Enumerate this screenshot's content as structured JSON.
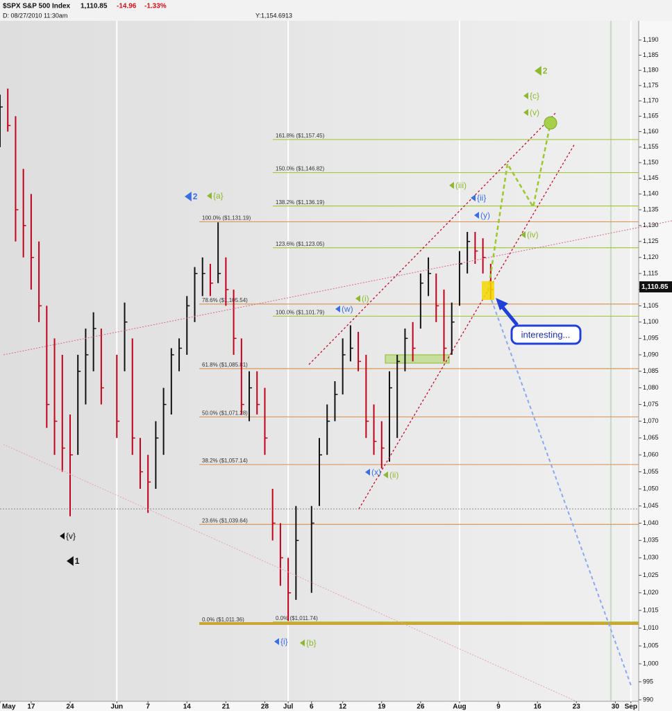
{
  "header": {
    "symbol": "$SPX S&P 500 Index",
    "price": "1,110.85",
    "change": "-14.96",
    "change_pct": "-1.33%",
    "date": "D: 08/27/2010 11:30am",
    "cursor": "Y:1,154.6913"
  },
  "chart_data": {
    "type": "hilo",
    "log": true,
    "up_color": "#111111",
    "down_color": "#c0001a",
    "x": [
      "2010-05-11",
      "2010-05-12",
      "2010-05-13",
      "2010-05-14",
      "2010-05-17",
      "2010-05-18",
      "2010-05-19",
      "2010-05-20",
      "2010-05-21",
      "2010-05-24",
      "2010-05-25",
      "2010-05-26",
      "2010-05-27",
      "2010-05-28",
      "2010-06-01",
      "2010-06-02",
      "2010-06-03",
      "2010-06-04",
      "2010-06-07",
      "2010-06-08",
      "2010-06-09",
      "2010-06-10",
      "2010-06-11",
      "2010-06-14",
      "2010-06-15",
      "2010-06-16",
      "2010-06-17",
      "2010-06-18",
      "2010-06-21",
      "2010-06-22",
      "2010-06-23",
      "2010-06-24",
      "2010-06-25",
      "2010-06-28",
      "2010-06-29",
      "2010-06-30",
      "2010-07-01",
      "2010-07-02",
      "2010-07-06",
      "2010-07-07",
      "2010-07-08",
      "2010-07-09",
      "2010-07-12",
      "2010-07-13",
      "2010-07-14",
      "2010-07-15",
      "2010-07-16",
      "2010-07-19",
      "2010-07-20",
      "2010-07-21",
      "2010-07-22",
      "2010-07-23",
      "2010-07-26",
      "2010-07-27",
      "2010-07-28",
      "2010-07-29",
      "2010-07-30",
      "2010-08-02",
      "2010-08-03",
      "2010-08-04",
      "2010-08-05",
      "2010-08-06"
    ],
    "high": [
      1172,
      1174,
      1165,
      1148,
      1140,
      1125,
      1105,
      1095,
      1090,
      1072,
      1090,
      1098,
      1103,
      1098,
      1090,
      1106,
      1095,
      1065,
      1060,
      1070,
      1080,
      1092,
      1095,
      1108,
      1117,
      1120,
      1118,
      1131,
      1120,
      1110,
      1095,
      1085,
      1085,
      1080,
      1050,
      1040,
      1030,
      1045,
      1045,
      1065,
      1075,
      1082,
      1095,
      1099,
      1097,
      1090,
      1075,
      1070,
      1085,
      1090,
      1098,
      1100,
      1115,
      1120,
      1115,
      1110,
      1106,
      1122,
      1128,
      1128,
      1126,
      1118
    ],
    "low": [
      1155,
      1160,
      1125,
      1120,
      1110,
      1100,
      1068,
      1060,
      1055,
      1042,
      1060,
      1075,
      1085,
      1075,
      1065,
      1085,
      1060,
      1050,
      1043,
      1050,
      1060,
      1072,
      1085,
      1090,
      1100,
      1108,
      1108,
      1112,
      1105,
      1090,
      1072,
      1070,
      1072,
      1060,
      1035,
      1022,
      1012,
      1018,
      1020,
      1045,
      1060,
      1070,
      1078,
      1088,
      1085,
      1065,
      1060,
      1056,
      1058,
      1065,
      1085,
      1088,
      1098,
      1108,
      1100,
      1088,
      1090,
      1105,
      1115,
      1118,
      1115,
      1107
    ],
    "close": [
      1168,
      1162,
      1135,
      1130,
      1120,
      1105,
      1075,
      1070,
      1062,
      1060,
      1085,
      1090,
      1098,
      1080,
      1070,
      1100,
      1065,
      1055,
      1052,
      1065,
      1075,
      1090,
      1092,
      1105,
      1115,
      1115,
      1112,
      1115,
      1110,
      1095,
      1075,
      1080,
      1075,
      1065,
      1040,
      1030,
      1020,
      1035,
      1040,
      1060,
      1070,
      1078,
      1090,
      1092,
      1088,
      1070,
      1064,
      1062,
      1080,
      1088,
      1095,
      1092,
      1112,
      1115,
      1105,
      1092,
      1100,
      1118,
      1125,
      1122,
      1120,
      1110
    ],
    "xlim": [
      "2010-05-11",
      "2010-09-02"
    ],
    "xticks": [
      {
        "value": "2010-05-11",
        "label": "May"
      },
      {
        "value": "2010-05-17",
        "label": "17"
      },
      {
        "value": "2010-05-24",
        "label": "24"
      },
      {
        "value": "2010-06-01",
        "label": "Jun"
      },
      {
        "value": "2010-06-07",
        "label": "7"
      },
      {
        "value": "2010-06-14",
        "label": "14"
      },
      {
        "value": "2010-06-21",
        "label": "21"
      },
      {
        "value": "2010-06-28",
        "label": "28"
      },
      {
        "value": "2010-07-01",
        "label": "Jul"
      },
      {
        "value": "2010-07-06",
        "label": "6"
      },
      {
        "value": "2010-07-12",
        "label": "12"
      },
      {
        "value": "2010-07-19",
        "label": "19"
      },
      {
        "value": "2010-07-26",
        "label": "26"
      },
      {
        "value": "2010-08-02",
        "label": "Aug"
      },
      {
        "value": "2010-08-09",
        "label": "9"
      },
      {
        "value": "2010-08-16",
        "label": "16"
      },
      {
        "value": "2010-08-23",
        "label": "23"
      },
      {
        "value": "2010-08-30",
        "label": "30"
      },
      {
        "value": "2010-09-01",
        "label": "Sep"
      }
    ],
    "ylim": [
      989.6,
      1196.4
    ],
    "yticks": [
      990,
      995,
      {
        "value": 1000,
        "label": "1,000"
      },
      {
        "value": 1005,
        "label": "1,005"
      },
      {
        "value": 1010,
        "label": "1,010"
      },
      {
        "value": 1015,
        "label": "1,015"
      },
      {
        "value": 1020,
        "label": "1,020"
      },
      {
        "value": 1025,
        "label": "1,025"
      },
      {
        "value": 1030,
        "label": "1,030"
      },
      {
        "value": 1035,
        "label": "1,035"
      },
      {
        "value": 1040,
        "label": "1,040"
      },
      {
        "value": 1045,
        "label": "1,045"
      },
      {
        "value": 1050,
        "label": "1,050"
      },
      {
        "value": 1055,
        "label": "1,055"
      },
      {
        "value": 1060,
        "label": "1,060"
      },
      {
        "value": 1065,
        "label": "1,065"
      },
      {
        "value": 1070,
        "label": "1,070"
      },
      {
        "value": 1075,
        "label": "1,075"
      },
      {
        "value": 1080,
        "label": "1,080"
      },
      {
        "value": 1085,
        "label": "1,085"
      },
      {
        "value": 1090,
        "label": "1,090"
      },
      {
        "value": 1095,
        "label": "1,095"
      },
      {
        "value": 1100,
        "label": "1,100"
      },
      {
        "value": 1105,
        "label": "1,105"
      },
      {
        "value": 1110,
        "label": "1,110"
      },
      {
        "value": 1115,
        "label": "1,115"
      },
      {
        "value": 1120,
        "label": "1,120"
      },
      {
        "value": 1125,
        "label": "1,125"
      },
      {
        "value": 1130,
        "label": "1,130"
      },
      {
        "value": 1135,
        "label": "1,135"
      },
      {
        "value": 1140,
        "label": "1,140"
      },
      {
        "value": 1145,
        "label": "1,145"
      },
      {
        "value": 1150,
        "label": "1,150"
      },
      {
        "value": 1155,
        "label": "1,155"
      },
      {
        "value": 1160,
        "label": "1,160"
      },
      {
        "value": 1165,
        "label": "1,165"
      },
      {
        "value": 1170,
        "label": "1,170"
      },
      {
        "value": 1175,
        "label": "1,175"
      },
      {
        "value": 1180,
        "label": "1,180"
      },
      {
        "value": 1185,
        "label": "1,185"
      },
      {
        "value": 1190,
        "label": "1,190"
      }
    ],
    "last": {
      "value": 1110.85,
      "label": "1,110.85"
    },
    "retracement": {
      "color": "#d9975e",
      "levels": [
        {
          "value": 1131.19,
          "label": "100.0%  ($1,131.19)"
        },
        {
          "value": 1105.54,
          "label": "78.6%  ($1,105.54)"
        },
        {
          "value": 1085.81,
          "label": "61.8%  ($1,085.81)"
        },
        {
          "value": 1071.28,
          "label": "50.0%  ($1,071.28)"
        },
        {
          "value": 1057.14,
          "label": "38.2%  ($1,057.14)"
        },
        {
          "value": 1039.64,
          "label": "23.6%  ($1,039.64)"
        },
        {
          "value": 1011.36,
          "label": "0.0%  ($1,011.36)"
        }
      ]
    },
    "extension": {
      "color": "#a8c83c",
      "levels": [
        {
          "value": 1157.45,
          "label": "161.8%  ($1,157.45)"
        },
        {
          "value": 1146.82,
          "label": "150.0%  ($1,146.82)"
        },
        {
          "value": 1136.19,
          "label": "138.2%  ($1,136.19)"
        },
        {
          "value": 1123.05,
          "label": "123.6%  ($1,123.05)"
        },
        {
          "value": 1101.79,
          "label": "100.0%  ($1,101.79)"
        },
        {
          "value": 1011.74,
          "label": "0.0%  ($1,011.74)"
        }
      ]
    },
    "wave_labels": [
      {
        "text": "{v}",
        "color": "#111111"
      },
      {
        "text": "1",
        "color": "#111111"
      },
      {
        "text": "2",
        "color": "#3b6fe0"
      },
      {
        "text": "{a}",
        "color": "#8db92e"
      },
      {
        "text": "{i}",
        "color": "#3b6fe0"
      },
      {
        "text": "{b}",
        "color": "#8db92e"
      },
      {
        "text": "(w)",
        "color": "#3b6fe0"
      },
      {
        "text": "(i)",
        "color": "#8db92e"
      },
      {
        "text": "(x)",
        "color": "#3b6fe0"
      },
      {
        "text": "(ii)",
        "color": "#8db92e"
      },
      {
        "text": "(iii)",
        "color": "#8db92e"
      },
      {
        "text": "{ii}",
        "color": "#3b6fe0"
      },
      {
        "text": "(y)",
        "color": "#3b6fe0"
      },
      {
        "text": "(iv)",
        "color": "#8db92e"
      },
      {
        "text": "{c}",
        "color": "#8db92e"
      },
      {
        "text": "(v)",
        "color": "#8db92e"
      },
      {
        "text": "2",
        "color": "#8db92e"
      }
    ],
    "callout": "interesting..."
  }
}
